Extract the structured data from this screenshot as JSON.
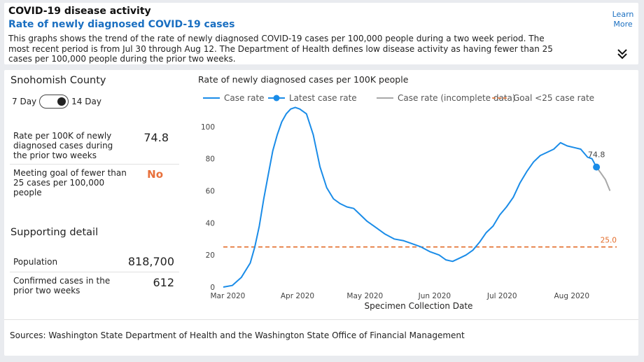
{
  "header": {
    "title": "COVID-19 disease activity",
    "subtitle": "Rate of newly diagnosed COVID-19 cases",
    "description": "This graphs shows the trend of the rate of newly diagnosed COVID-19 cases per 100,000 people during a two week period. The most recent period is from Jul 30 through Aug 12. The Department of Health defines low disease activity as having fewer than 25 cases per 100,000 people during the prior two weeks.",
    "learn_more": "Learn More",
    "expand_icon": "chevron-double-down-icon"
  },
  "panel": {
    "county": "Snohomish County",
    "toggle_left": "7 Day",
    "toggle_right": "14 Day",
    "rate_label": "Rate per 100K of newly diagnosed cases during the prior two weeks",
    "rate_value": "74.8",
    "goal_label": "Meeting goal of fewer than 25 cases per 100,000 people",
    "goal_value": "No",
    "supporting_title": "Supporting detail",
    "population_label": "Population",
    "population_value": "818,700",
    "confirmed_label": "Confirmed cases in the prior two weeks",
    "confirmed_value": "612"
  },
  "sources": "Sources: Washington State Department of Health and the Washington State Office of Financial Management",
  "colors": {
    "case_rate": "#1a8ce8",
    "incomplete": "#a8a8a8",
    "goal": "#e36c2a",
    "no_text": "#e8703b"
  },
  "chart_data": {
    "type": "line",
    "title": "Rate of newly diagnosed cases per 100K people",
    "xlabel": "Specimen Collection Date",
    "ylabel": "",
    "ylim": [
      0,
      110
    ],
    "yticks": [
      0,
      20,
      40,
      60,
      80,
      100
    ],
    "xticks": [
      "Mar 2020",
      "Apr 2020",
      "May 2020",
      "Jun 2020",
      "Jul 2020",
      "Aug 2020"
    ],
    "legend": [
      "Case rate",
      "Latest case rate",
      "Case rate (incomplete data)",
      "Goal <25 case rate"
    ],
    "goal": {
      "value": 25,
      "label": "25.0"
    },
    "latest": {
      "x": "2020-08-12",
      "value": 74.8,
      "label": "74.8"
    },
    "series": [
      {
        "name": "Case rate",
        "x": [
          "2020-02-28",
          "2020-03-03",
          "2020-03-07",
          "2020-03-11",
          "2020-03-13",
          "2020-03-15",
          "2020-03-17",
          "2020-03-19",
          "2020-03-21",
          "2020-03-23",
          "2020-03-25",
          "2020-03-27",
          "2020-03-29",
          "2020-03-31",
          "2020-04-02",
          "2020-04-05",
          "2020-04-08",
          "2020-04-11",
          "2020-04-14",
          "2020-04-17",
          "2020-04-20",
          "2020-04-23",
          "2020-04-26",
          "2020-04-29",
          "2020-05-02",
          "2020-05-06",
          "2020-05-10",
          "2020-05-14",
          "2020-05-18",
          "2020-05-22",
          "2020-05-26",
          "2020-05-30",
          "2020-06-03",
          "2020-06-06",
          "2020-06-09",
          "2020-06-12",
          "2020-06-15",
          "2020-06-18",
          "2020-06-21",
          "2020-06-24",
          "2020-06-27",
          "2020-06-30",
          "2020-07-03",
          "2020-07-06",
          "2020-07-09",
          "2020-07-12",
          "2020-07-15",
          "2020-07-18",
          "2020-07-21",
          "2020-07-24",
          "2020-07-27",
          "2020-07-30",
          "2020-08-02",
          "2020-08-05",
          "2020-08-08",
          "2020-08-10",
          "2020-08-12"
        ],
        "values": [
          0,
          1,
          6,
          15,
          25,
          38,
          55,
          70,
          85,
          95,
          103,
          108,
          111,
          112,
          111,
          108,
          95,
          75,
          62,
          55,
          52,
          50,
          49,
          45,
          41,
          37,
          33,
          30,
          29,
          27,
          25,
          22,
          20,
          17,
          16,
          18,
          20,
          23,
          28,
          34,
          38,
          45,
          50,
          56,
          65,
          72,
          78,
          82,
          84,
          86,
          90,
          88,
          87,
          86,
          81,
          80,
          74.8
        ]
      },
      {
        "name": "Case rate (incomplete data)",
        "x": [
          "2020-08-12",
          "2020-08-14",
          "2020-08-16",
          "2020-08-18"
        ],
        "values": [
          74.8,
          71,
          67,
          60
        ]
      }
    ]
  }
}
